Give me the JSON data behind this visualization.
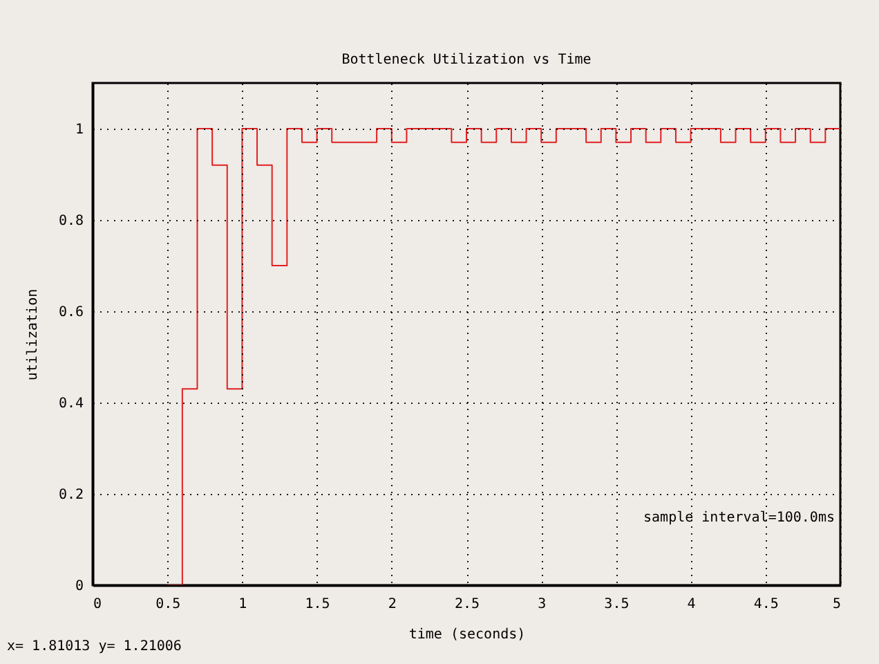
{
  "chart_data": {
    "type": "step",
    "title": "Bottleneck Utilization vs Time",
    "xlabel": "time (seconds)",
    "ylabel": "utilization",
    "x": [
      0.5,
      0.6,
      0.7,
      0.8,
      0.9,
      1.0,
      1.1,
      1.2,
      1.3,
      1.4,
      1.5,
      1.6,
      1.7,
      1.8,
      1.9,
      2.0,
      2.1,
      2.2,
      2.3,
      2.4,
      2.5,
      2.6,
      2.7,
      2.8,
      2.9,
      3.0,
      3.1,
      3.2,
      3.3,
      3.4,
      3.5,
      3.6,
      3.7,
      3.8,
      3.9,
      4.0,
      4.1,
      4.2,
      4.3,
      4.4,
      4.5,
      4.6,
      4.7,
      4.8,
      4.9,
      5.0
    ],
    "series": [
      {
        "color": "#e02020",
        "values": [
          0,
          0.43,
          1,
          0.92,
          0.43,
          1,
          0.92,
          0.7,
          1,
          0.97,
          1,
          0.97,
          0.97,
          0.97,
          1,
          0.97,
          1,
          1,
          1,
          0.97,
          1,
          0.97,
          1,
          0.97,
          1,
          0.97,
          1,
          1,
          0.97,
          1,
          0.97,
          1,
          0.97,
          1,
          0.97,
          1,
          1,
          0.97,
          1,
          0.97,
          1,
          0.97,
          1,
          0.97,
          1,
          1
        ]
      }
    ],
    "xlim": [
      0,
      5
    ],
    "ylim": [
      0,
      1.1
    ],
    "xticks": [
      0,
      0.5,
      1,
      1.5,
      2,
      2.5,
      3,
      3.5,
      4,
      4.5,
      5
    ],
    "yticks": [
      0,
      0.2,
      0.4,
      0.6,
      0.8,
      1
    ],
    "grid": true,
    "line_style": "solid",
    "annotations": [
      "sample interval=100.0ms",
      "x= 1.81013 y= 1.21006"
    ]
  }
}
